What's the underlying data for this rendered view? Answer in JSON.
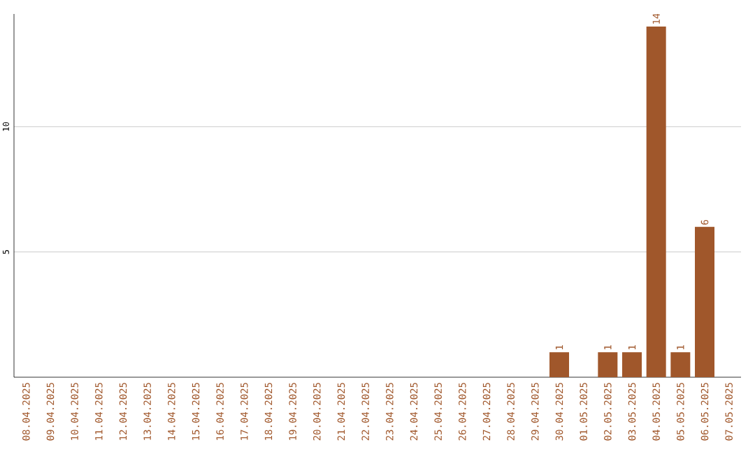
{
  "chart_data": {
    "type": "bar",
    "categories": [
      "08.04.2025",
      "09.04.2025",
      "10.04.2025",
      "11.04.2025",
      "12.04.2025",
      "13.04.2025",
      "14.04.2025",
      "15.04.2025",
      "16.04.2025",
      "17.04.2025",
      "18.04.2025",
      "19.04.2025",
      "20.04.2025",
      "21.04.2025",
      "22.04.2025",
      "23.04.2025",
      "24.04.2025",
      "25.04.2025",
      "26.04.2025",
      "27.04.2025",
      "28.04.2025",
      "29.04.2025",
      "30.04.2025",
      "01.05.2025",
      "02.05.2025",
      "03.05.2025",
      "04.05.2025",
      "05.05.2025",
      "06.05.2025",
      "07.05.2025"
    ],
    "values": [
      0,
      0,
      0,
      0,
      0,
      0,
      0,
      0,
      0,
      0,
      0,
      0,
      0,
      0,
      0,
      0,
      0,
      0,
      0,
      0,
      0,
      0,
      1,
      0,
      1,
      1,
      14,
      1,
      6,
      0
    ],
    "value_labels": [
      null,
      null,
      null,
      null,
      null,
      null,
      null,
      null,
      null,
      null,
      null,
      null,
      null,
      null,
      null,
      null,
      null,
      null,
      null,
      null,
      null,
      null,
      "1",
      null,
      "1",
      "1",
      "14",
      "1",
      "6",
      null
    ],
    "color": "#a0572b",
    "ylim": [
      0,
      14.5
    ],
    "yticks": [
      5,
      10
    ],
    "grid": "y"
  }
}
